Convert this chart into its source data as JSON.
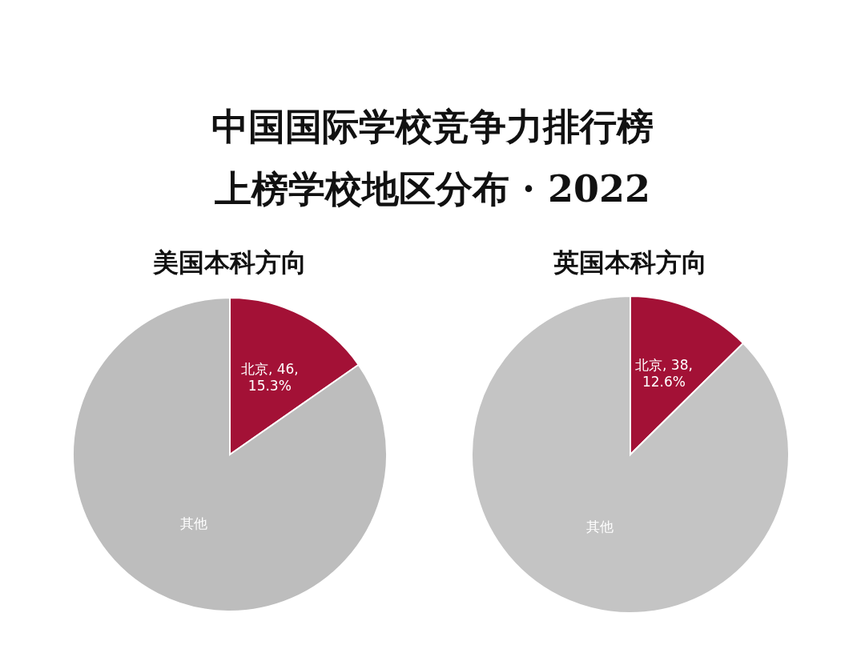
{
  "chart_data": [
    {
      "type": "other",
      "title": "中国国际学校竞争力排行榜",
      "subtitle": "上榜学校地区分布 · 2022"
    },
    {
      "type": "pie",
      "title": "美国本科方向",
      "categories": [
        "北京",
        "其他"
      ],
      "values": [
        15.3,
        84.7
      ],
      "colors": [
        "#a31136",
        "#bdbdbd"
      ],
      "value_labels": [
        "46, 15.3%",
        null
      ]
    },
    {
      "type": "pie",
      "title": "英国本科方向",
      "categories": [
        "北京",
        "其他"
      ],
      "values": [
        12.6,
        87.4
      ],
      "colors": [
        "#a31136",
        "#c4c4c4"
      ],
      "value_labels": [
        "38, 12.6%",
        null
      ]
    }
  ]
}
